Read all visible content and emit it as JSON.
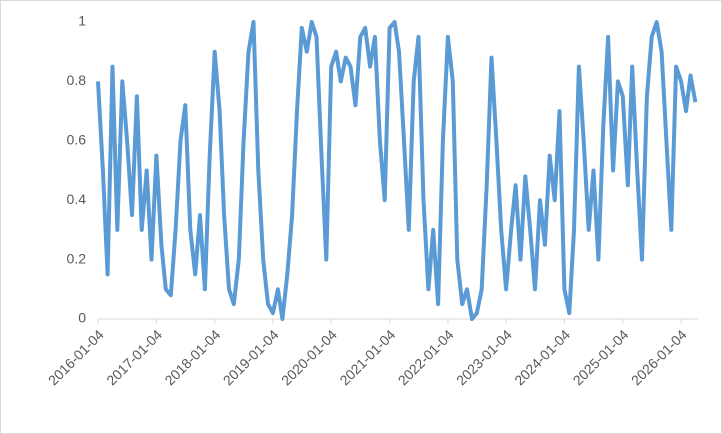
{
  "chart_data": {
    "type": "line",
    "x": [
      "2016-01-04",
      "2016-02-04",
      "2016-03-04",
      "2016-04-04",
      "2016-05-04",
      "2016-06-04",
      "2016-07-04",
      "2016-08-04",
      "2016-09-04",
      "2016-10-04",
      "2016-11-04",
      "2016-12-04",
      "2017-01-04",
      "2017-02-04",
      "2017-03-04",
      "2017-04-04",
      "2017-05-04",
      "2017-06-04",
      "2017-07-04",
      "2017-08-04",
      "2017-09-04",
      "2017-10-04",
      "2017-11-04",
      "2017-12-04",
      "2018-01-04",
      "2018-02-04",
      "2018-03-04",
      "2018-04-04",
      "2018-05-04",
      "2018-06-04",
      "2018-07-04",
      "2018-08-04",
      "2018-09-04",
      "2018-10-04",
      "2018-11-04",
      "2018-12-04",
      "2019-01-04",
      "2019-02-04",
      "2019-03-04",
      "2019-04-04",
      "2019-05-04",
      "2019-06-04",
      "2019-07-04",
      "2019-08-04",
      "2019-09-04",
      "2019-10-04",
      "2019-11-04",
      "2019-12-04",
      "2020-01-04",
      "2020-02-04",
      "2020-03-04",
      "2020-04-04",
      "2020-05-04",
      "2020-06-04",
      "2020-07-04",
      "2020-08-04",
      "2020-09-04",
      "2020-10-04",
      "2020-11-04",
      "2020-12-04",
      "2021-01-04",
      "2021-02-04",
      "2021-03-04",
      "2021-04-04",
      "2021-05-04",
      "2021-06-04",
      "2021-07-04",
      "2021-08-04",
      "2021-09-04",
      "2021-10-04",
      "2021-11-04",
      "2021-12-04",
      "2022-01-04",
      "2022-02-04",
      "2022-03-04",
      "2022-04-04",
      "2022-05-04",
      "2022-06-04",
      "2022-07-04",
      "2022-08-04",
      "2022-09-04",
      "2022-10-04",
      "2022-11-04",
      "2022-12-04",
      "2023-01-04",
      "2023-02-04",
      "2023-03-04",
      "2023-04-04",
      "2023-05-04",
      "2023-06-04",
      "2023-07-04",
      "2023-08-04",
      "2023-09-04",
      "2023-10-04",
      "2023-11-04",
      "2023-12-04",
      "2024-01-04",
      "2024-02-04",
      "2024-03-04",
      "2024-04-04",
      "2024-05-04",
      "2024-06-04",
      "2024-07-04",
      "2024-08-04",
      "2024-09-04",
      "2024-10-04",
      "2024-11-04",
      "2024-12-04",
      "2025-01-04",
      "2025-02-04",
      "2025-03-04",
      "2025-04-04",
      "2025-05-04",
      "2025-06-04",
      "2025-07-04",
      "2025-08-04",
      "2025-09-04",
      "2025-10-04",
      "2025-11-04",
      "2025-12-04",
      "2026-01-04",
      "2026-02-04",
      "2026-03-04",
      "2026-04-04"
    ],
    "series": [
      {
        "color": "#5b9bd5",
        "values": [
          0.8,
          0.5,
          0.15,
          0.85,
          0.3,
          0.8,
          0.6,
          0.35,
          0.75,
          0.3,
          0.5,
          0.2,
          0.55,
          0.25,
          0.1,
          0.08,
          0.3,
          0.6,
          0.72,
          0.3,
          0.15,
          0.35,
          0.1,
          0.55,
          0.9,
          0.7,
          0.35,
          0.1,
          0.05,
          0.2,
          0.6,
          0.9,
          1.0,
          0.5,
          0.2,
          0.05,
          0.02,
          0.1,
          0.0,
          0.15,
          0.35,
          0.7,
          0.98,
          0.9,
          1.0,
          0.95,
          0.55,
          0.2,
          0.85,
          0.9,
          0.8,
          0.88,
          0.85,
          0.72,
          0.95,
          0.98,
          0.85,
          0.95,
          0.6,
          0.4,
          0.98,
          1.0,
          0.9,
          0.6,
          0.3,
          0.8,
          0.95,
          0.4,
          0.1,
          0.3,
          0.05,
          0.6,
          0.95,
          0.8,
          0.2,
          0.05,
          0.1,
          0.0,
          0.02,
          0.1,
          0.45,
          0.88,
          0.6,
          0.3,
          0.1,
          0.3,
          0.45,
          0.2,
          0.48,
          0.3,
          0.1,
          0.4,
          0.25,
          0.55,
          0.4,
          0.7,
          0.1,
          0.02,
          0.3,
          0.85,
          0.6,
          0.3,
          0.5,
          0.2,
          0.65,
          0.95,
          0.5,
          0.8,
          0.75,
          0.45,
          0.85,
          0.5,
          0.2,
          0.75,
          0.95,
          1.0,
          0.9,
          0.6,
          0.3,
          0.85,
          0.8,
          0.7,
          0.82,
          0.73
        ]
      }
    ],
    "xlim": [
      "2016-01-04",
      "2026-04-20"
    ],
    "xticks": [
      "2016-01-04",
      "2017-01-04",
      "2018-01-04",
      "2019-01-04",
      "2020-01-04",
      "2021-01-04",
      "2022-01-04",
      "2023-01-04",
      "2024-01-04",
      "2025-01-04",
      "2026-01-04"
    ],
    "ylim": [
      0,
      1
    ],
    "yticks": [
      0,
      0.2,
      0.4,
      0.6,
      0.8,
      1
    ],
    "grid": false
  }
}
